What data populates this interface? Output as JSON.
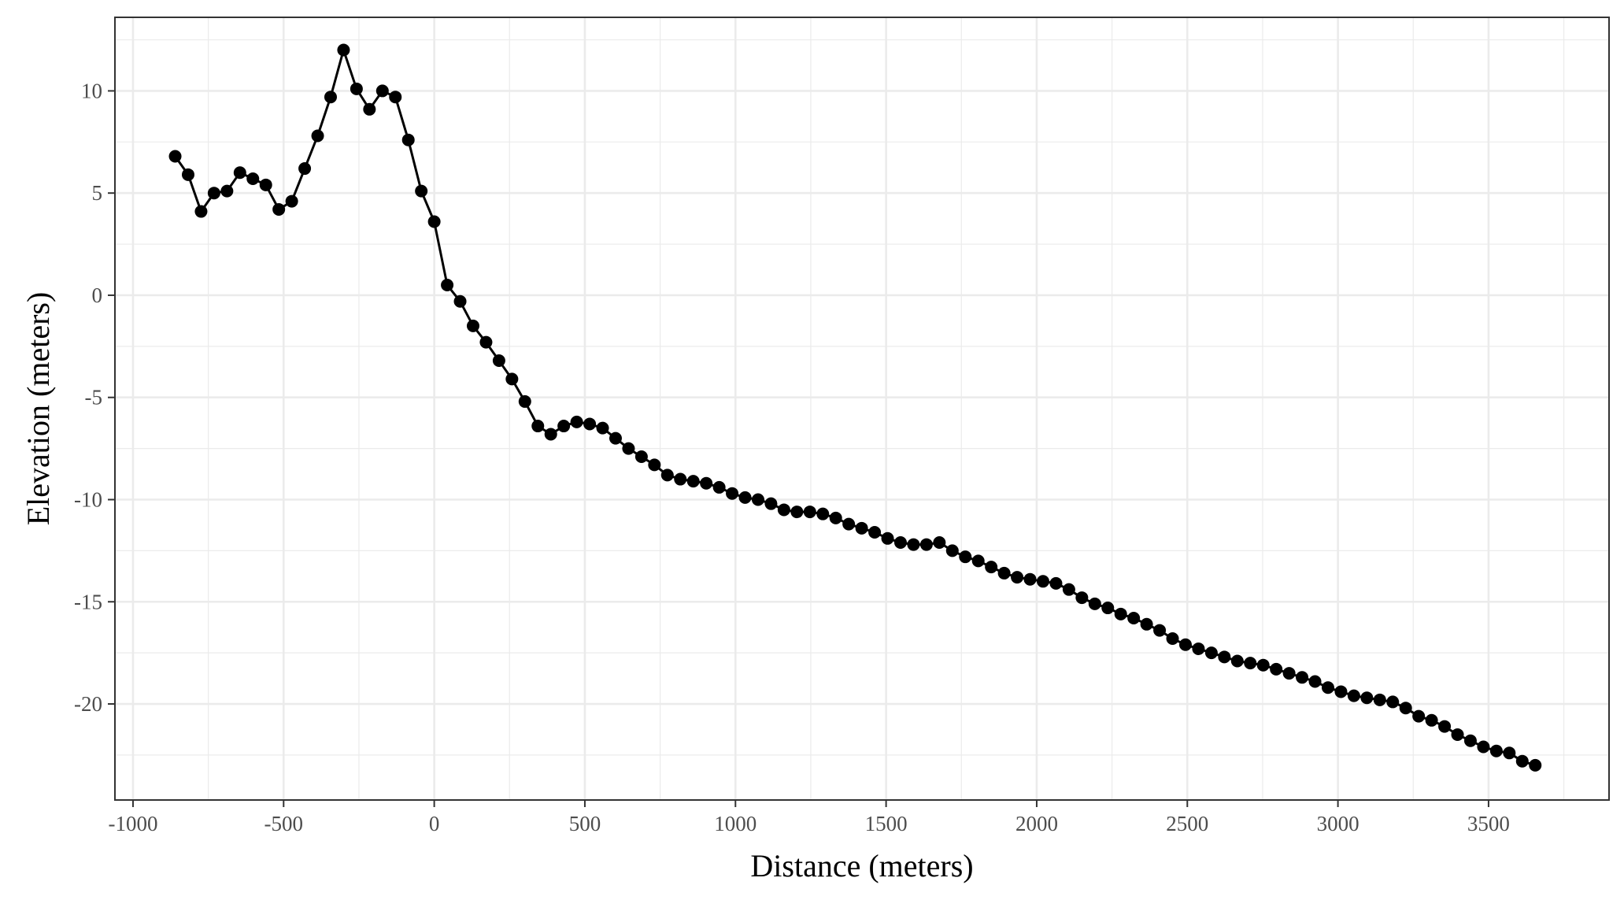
{
  "chart_data": {
    "type": "line",
    "xlabel": "Distance (meters)",
    "ylabel": "Elevation (meters)",
    "xlim": [
      -1060,
      3900
    ],
    "ylim": [
      -24.7,
      13.6
    ],
    "x_ticks": [
      -1000,
      -500,
      0,
      500,
      1000,
      1500,
      2000,
      2500,
      3000,
      3500
    ],
    "x_tick_labels": [
      "-1000",
      "-500",
      "0",
      "500",
      "1000",
      "1500",
      "2000",
      "2500",
      "3000",
      "3500"
    ],
    "y_ticks": [
      -20,
      -15,
      -10,
      -5,
      0,
      5,
      10
    ],
    "y_tick_labels": [
      "-20",
      "-15",
      "-10",
      "-5",
      "0",
      "5",
      "10"
    ],
    "grid": true,
    "markers": true,
    "colors": {
      "line": "#000000",
      "marker": "#000000",
      "grid": "#ebebeb",
      "panel_border": "#333333"
    },
    "series": [
      {
        "x": [
          -860,
          -817,
          -774,
          -731,
          -688,
          -645,
          -602,
          -559,
          -516,
          -473,
          -430,
          -387,
          -344,
          -301,
          -258,
          -215,
          -172,
          -129,
          -86,
          -43,
          0,
          43,
          86,
          129,
          172,
          215,
          258,
          301,
          344,
          387,
          430,
          473,
          516,
          559,
          602,
          645,
          688,
          731,
          774,
          817,
          860,
          903,
          946,
          989,
          1032,
          1075,
          1118,
          1161,
          1204,
          1247,
          1290,
          1333,
          1376,
          1419,
          1462,
          1505,
          1548,
          1591,
          1634,
          1677,
          1720,
          1763,
          1806,
          1849,
          1892,
          1935,
          1978,
          2021,
          2064,
          2107,
          2150,
          2193,
          2236,
          2279,
          2322,
          2365,
          2408,
          2451,
          2494,
          2537,
          2580,
          2623,
          2666,
          2709,
          2752,
          2795,
          2838,
          2881,
          2924,
          2967,
          3010,
          3053,
          3096,
          3139,
          3182,
          3225,
          3268,
          3311,
          3354,
          3397,
          3440,
          3483,
          3526,
          3569,
          3612,
          3655
        ],
        "y": [
          6.8,
          5.9,
          4.1,
          5.0,
          5.1,
          6.0,
          5.7,
          5.4,
          4.2,
          4.6,
          6.2,
          7.8,
          9.7,
          12.0,
          10.1,
          9.1,
          10.0,
          9.7,
          7.6,
          5.1,
          3.6,
          0.5,
          -0.3,
          -1.5,
          -2.3,
          -3.2,
          -4.1,
          -5.2,
          -6.4,
          -6.8,
          -6.4,
          -6.2,
          -6.3,
          -6.5,
          -7.0,
          -7.5,
          -7.9,
          -8.3,
          -8.8,
          -9.0,
          -9.1,
          -9.2,
          -9.4,
          -9.7,
          -9.9,
          -10.0,
          -10.2,
          -10.5,
          -10.6,
          -10.6,
          -10.7,
          -10.9,
          -11.2,
          -11.4,
          -11.6,
          -11.9,
          -12.1,
          -12.2,
          -12.2,
          -12.1,
          -12.5,
          -12.8,
          -13.0,
          -13.3,
          -13.6,
          -13.8,
          -13.9,
          -14.0,
          -14.1,
          -14.4,
          -14.8,
          -15.1,
          -15.3,
          -15.6,
          -15.8,
          -16.1,
          -16.4,
          -16.8,
          -17.1,
          -17.3,
          -17.5,
          -17.7,
          -17.9,
          -18.0,
          -18.1,
          -18.3,
          -18.5,
          -18.7,
          -18.9,
          -19.2,
          -19.4,
          -19.6,
          -19.7,
          -19.8,
          -19.9,
          -20.2,
          -20.6,
          -20.8,
          -21.1,
          -21.5,
          -21.8,
          -22.1,
          -22.3,
          -22.4,
          -22.8,
          -23.0
        ]
      }
    ]
  }
}
